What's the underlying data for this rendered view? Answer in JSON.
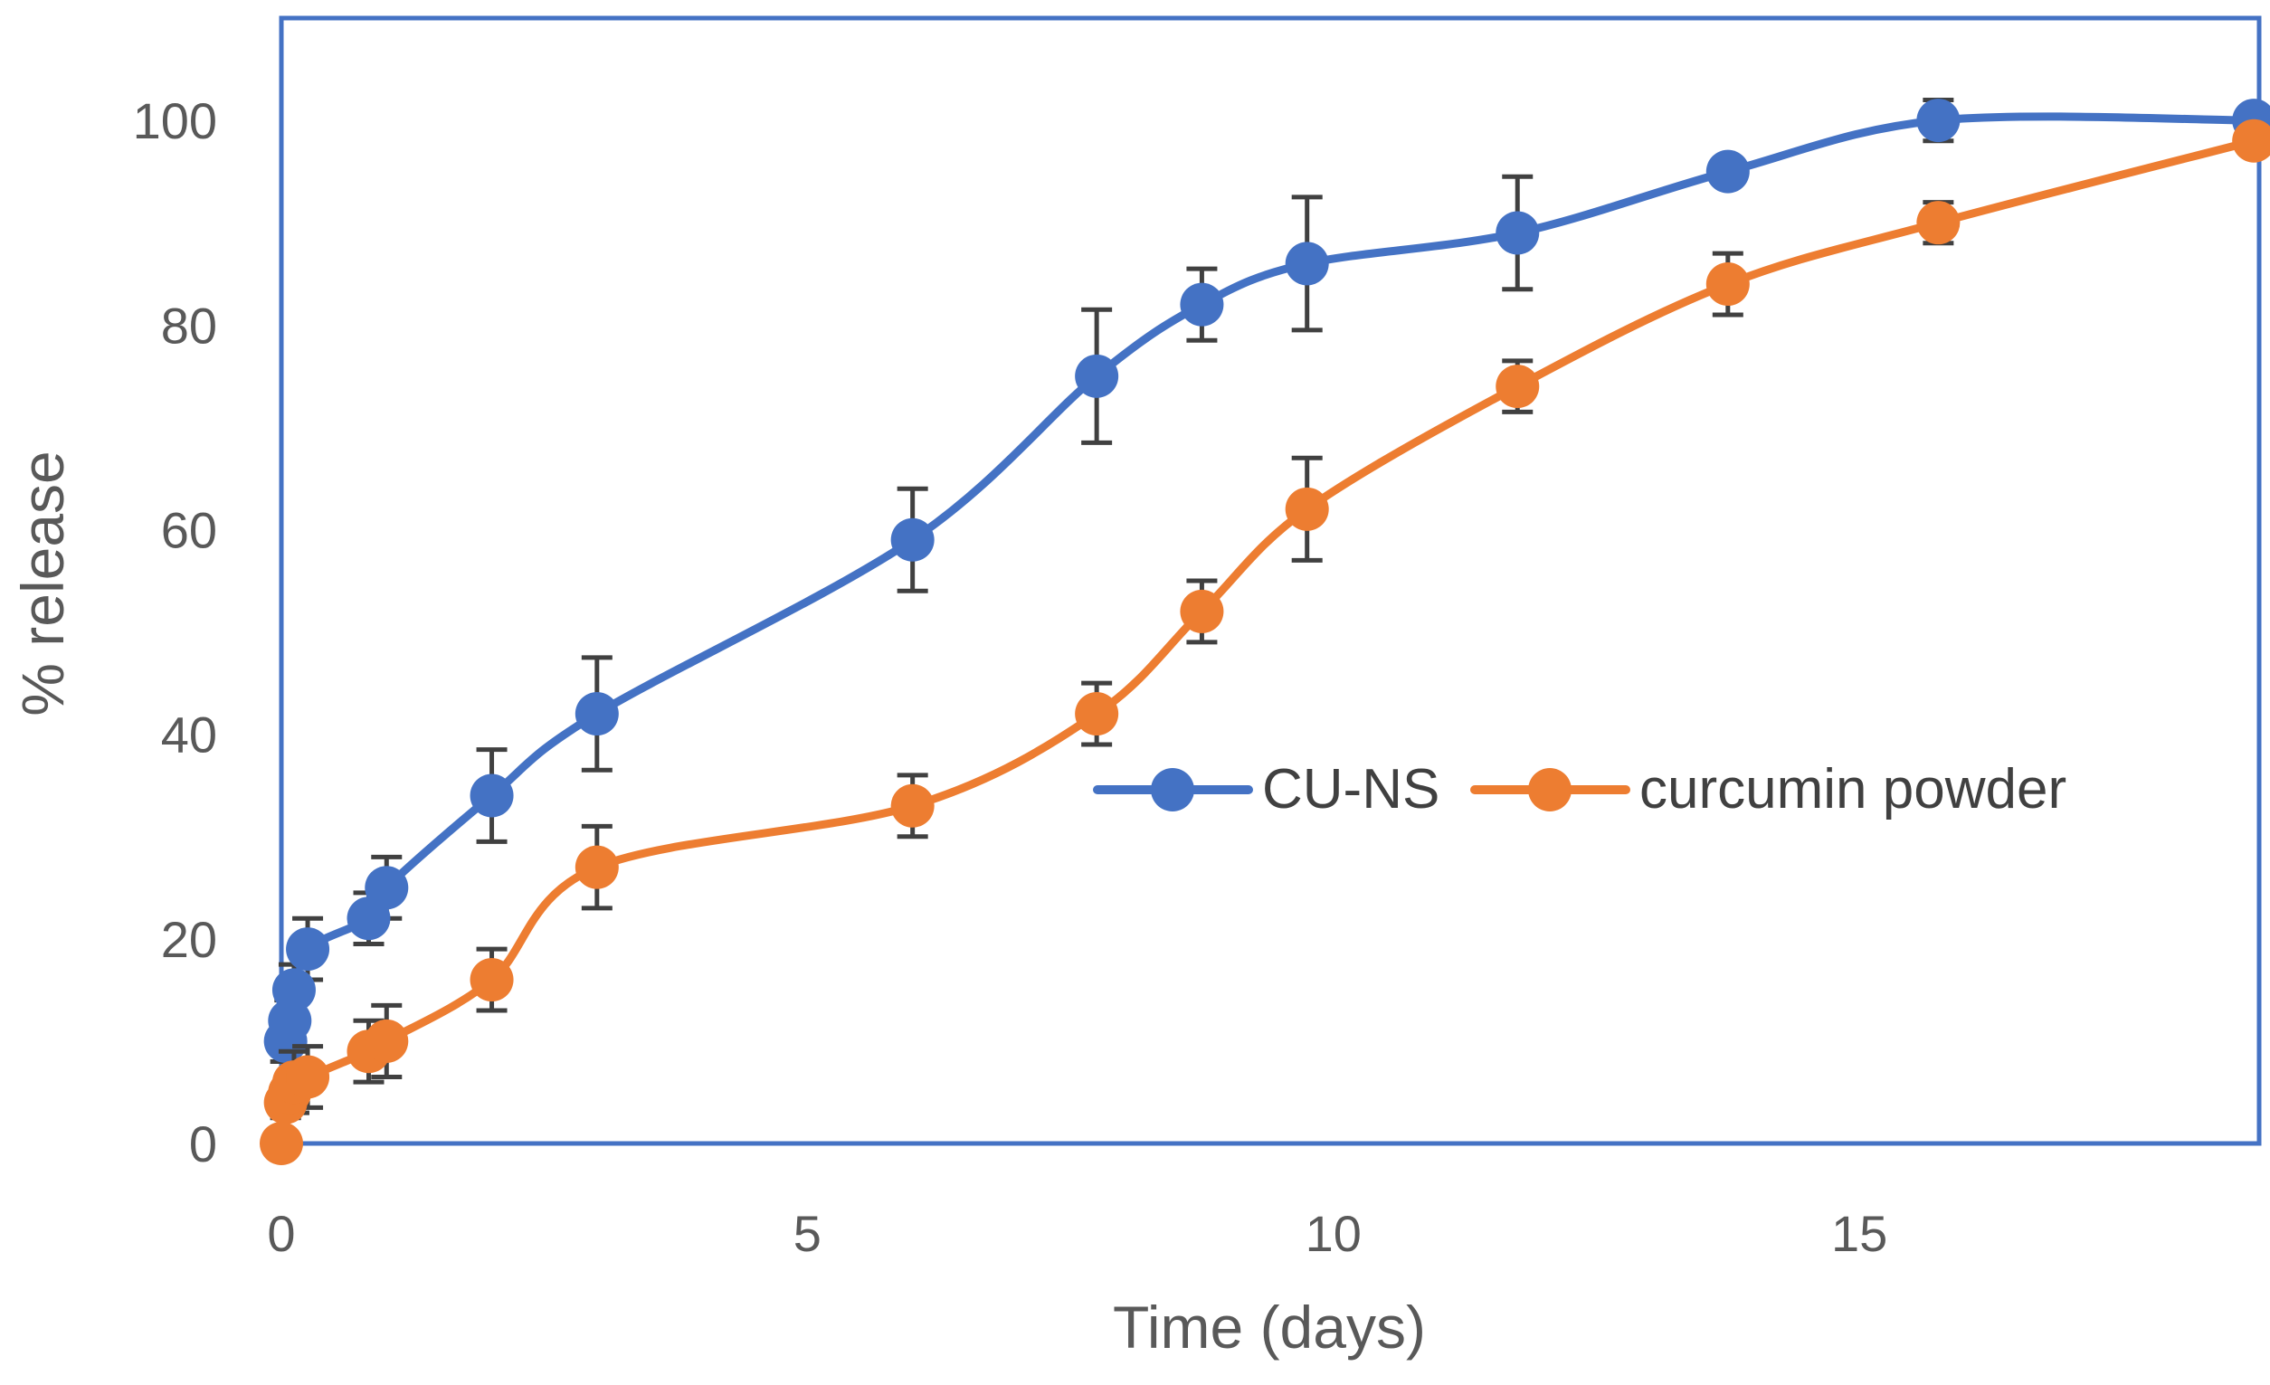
{
  "chart_data": {
    "type": "line",
    "title": "",
    "xlabel": "Time (days)",
    "ylabel": "% release",
    "xlim": [
      0,
      18.8
    ],
    "ylim": [
      0,
      110
    ],
    "xticks": [
      0,
      5,
      10,
      15
    ],
    "yticks": [
      0,
      20,
      40,
      60,
      80,
      100
    ],
    "xtick_labels": [
      "0",
      "5",
      "10",
      "15"
    ],
    "ytick_labels": [
      "0",
      "20",
      "40",
      "60",
      "80",
      "100"
    ],
    "grid": false,
    "legend_position": "center-right",
    "series": [
      {
        "name": "CU-NS",
        "color": "#4472C4",
        "x": [
          0.04,
          0.08,
          0.12,
          0.25,
          0.83,
          1.0,
          2.0,
          3.0,
          6.0,
          7.75,
          8.75,
          9.75,
          11.75,
          13.75,
          15.75,
          18.75
        ],
        "y": [
          10,
          12,
          15,
          19,
          22,
          25,
          34,
          42,
          59,
          75,
          82,
          86,
          89,
          95,
          100,
          100
        ],
        "err": [
          2,
          2,
          2.5,
          3,
          2.5,
          3,
          4.5,
          5.5,
          5,
          6.5,
          3.5,
          6.5,
          5.5,
          0,
          2,
          0
        ]
      },
      {
        "name": "curcumin powder",
        "color": "#ED7D31",
        "x": [
          0,
          0.04,
          0.08,
          0.12,
          0.25,
          0.83,
          1.0,
          2.0,
          3.0,
          6.0,
          7.75,
          8.75,
          9.75,
          11.75,
          13.75,
          15.75,
          18.75
        ],
        "y": [
          0,
          4,
          5,
          6,
          6.5,
          9,
          10,
          16,
          27,
          33,
          42,
          52,
          62,
          74,
          84,
          90,
          98
        ],
        "err": [
          0,
          1.5,
          1.5,
          3,
          3,
          3,
          3.5,
          3,
          4,
          3,
          3,
          3,
          5,
          2.5,
          3,
          2,
          0
        ]
      }
    ]
  }
}
